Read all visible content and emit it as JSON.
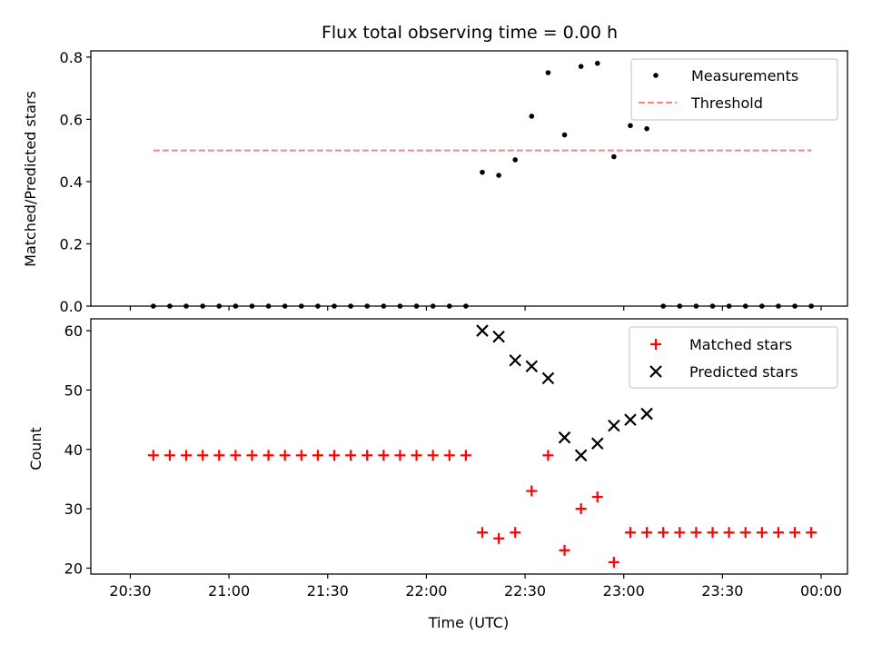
{
  "chart_data": [
    {
      "type": "scatter",
      "title": "Flux total observing time = 0.00 h",
      "xlabel": "",
      "ylabel": "Matched/Predicted stars",
      "ylim": [
        0,
        0.82
      ],
      "yticks": [
        0.0,
        0.2,
        0.4,
        0.6,
        0.8
      ],
      "ytick_labels": [
        "0.0",
        "0.2",
        "0.4",
        "0.6",
        "0.8"
      ],
      "xlim": [
        "20:18",
        "00:08"
      ],
      "legend": {
        "position": "top-right",
        "entries": [
          {
            "label": "Measurements",
            "marker": "dot",
            "color": "#000000"
          },
          {
            "label": "Threshold",
            "marker": "dashed-line",
            "color": "#ff7f7f"
          }
        ]
      },
      "series": [
        {
          "name": "Measurements",
          "color": "#000000",
          "x": [
            "20:37",
            "20:42",
            "20:47",
            "20:52",
            "20:57",
            "21:02",
            "21:07",
            "21:12",
            "21:17",
            "21:22",
            "21:27",
            "21:32",
            "21:37",
            "21:42",
            "21:47",
            "21:52",
            "21:57",
            "22:02",
            "22:07",
            "22:12",
            "22:17",
            "22:22",
            "22:27",
            "22:32",
            "22:37",
            "22:42",
            "22:47",
            "22:52",
            "22:57",
            "23:02",
            "23:07",
            "23:12",
            "23:17",
            "23:22",
            "23:27",
            "23:32",
            "23:37",
            "23:42",
            "23:47",
            "23:52",
            "23:57"
          ],
          "y": [
            0,
            0,
            0,
            0,
            0,
            0,
            0,
            0,
            0,
            0,
            0,
            0,
            0,
            0,
            0,
            0,
            0,
            0,
            0,
            0,
            0.43,
            0.42,
            0.47,
            0.61,
            0.75,
            0.55,
            0.77,
            0.78,
            0.48,
            0.58,
            0.57,
            0,
            0,
            0,
            0,
            0,
            0,
            0,
            0,
            0,
            0
          ]
        },
        {
          "name": "Threshold",
          "color": "#ff7f7f",
          "x": [
            "20:37",
            "23:57"
          ],
          "y": [
            0.5,
            0.5
          ]
        }
      ]
    },
    {
      "type": "scatter",
      "title": "",
      "xlabel": "Time (UTC)",
      "ylabel": "Count",
      "ylim": [
        19,
        62
      ],
      "yticks": [
        20,
        30,
        40,
        50,
        60
      ],
      "ytick_labels": [
        "20",
        "30",
        "40",
        "50",
        "60"
      ],
      "xlim": [
        "20:18",
        "00:08"
      ],
      "xticks": [
        "20:30",
        "21:00",
        "21:30",
        "22:00",
        "22:30",
        "23:00",
        "23:30",
        "00:00"
      ],
      "xtick_labels": [
        "20:30",
        "21:00",
        "21:30",
        "22:00",
        "22:30",
        "23:00",
        "23:30",
        "00:00"
      ],
      "legend": {
        "position": "top-right",
        "entries": [
          {
            "label": "Matched stars",
            "marker": "plus",
            "color": "#ff0000"
          },
          {
            "label": "Predicted stars",
            "marker": "x",
            "color": "#000000"
          }
        ]
      },
      "series": [
        {
          "name": "Matched stars",
          "color": "#ff0000",
          "marker": "plus",
          "x": [
            "20:37",
            "20:42",
            "20:47",
            "20:52",
            "20:57",
            "21:02",
            "21:07",
            "21:12",
            "21:17",
            "21:22",
            "21:27",
            "21:32",
            "21:37",
            "21:42",
            "21:47",
            "21:52",
            "21:57",
            "22:02",
            "22:07",
            "22:12",
            "22:17",
            "22:22",
            "22:27",
            "22:32",
            "22:37",
            "22:42",
            "22:47",
            "22:52",
            "22:57",
            "23:02",
            "23:07",
            "23:12",
            "23:17",
            "23:22",
            "23:27",
            "23:32",
            "23:37",
            "23:42",
            "23:47",
            "23:52",
            "23:57"
          ],
          "y": [
            39,
            39,
            39,
            39,
            39,
            39,
            39,
            39,
            39,
            39,
            39,
            39,
            39,
            39,
            39,
            39,
            39,
            39,
            39,
            39,
            26,
            25,
            26,
            33,
            39,
            23,
            30,
            32,
            21,
            26,
            26,
            26,
            26,
            26,
            26,
            26,
            26,
            26,
            26,
            26,
            26
          ]
        },
        {
          "name": "Predicted stars",
          "color": "#000000",
          "marker": "x",
          "x": [
            "22:17",
            "22:22",
            "22:27",
            "22:32",
            "22:37",
            "22:42",
            "22:47",
            "22:52",
            "22:57",
            "23:02",
            "23:07"
          ],
          "y": [
            60,
            59,
            55,
            54,
            52,
            42,
            39,
            41,
            44,
            45,
            46
          ]
        }
      ]
    }
  ]
}
